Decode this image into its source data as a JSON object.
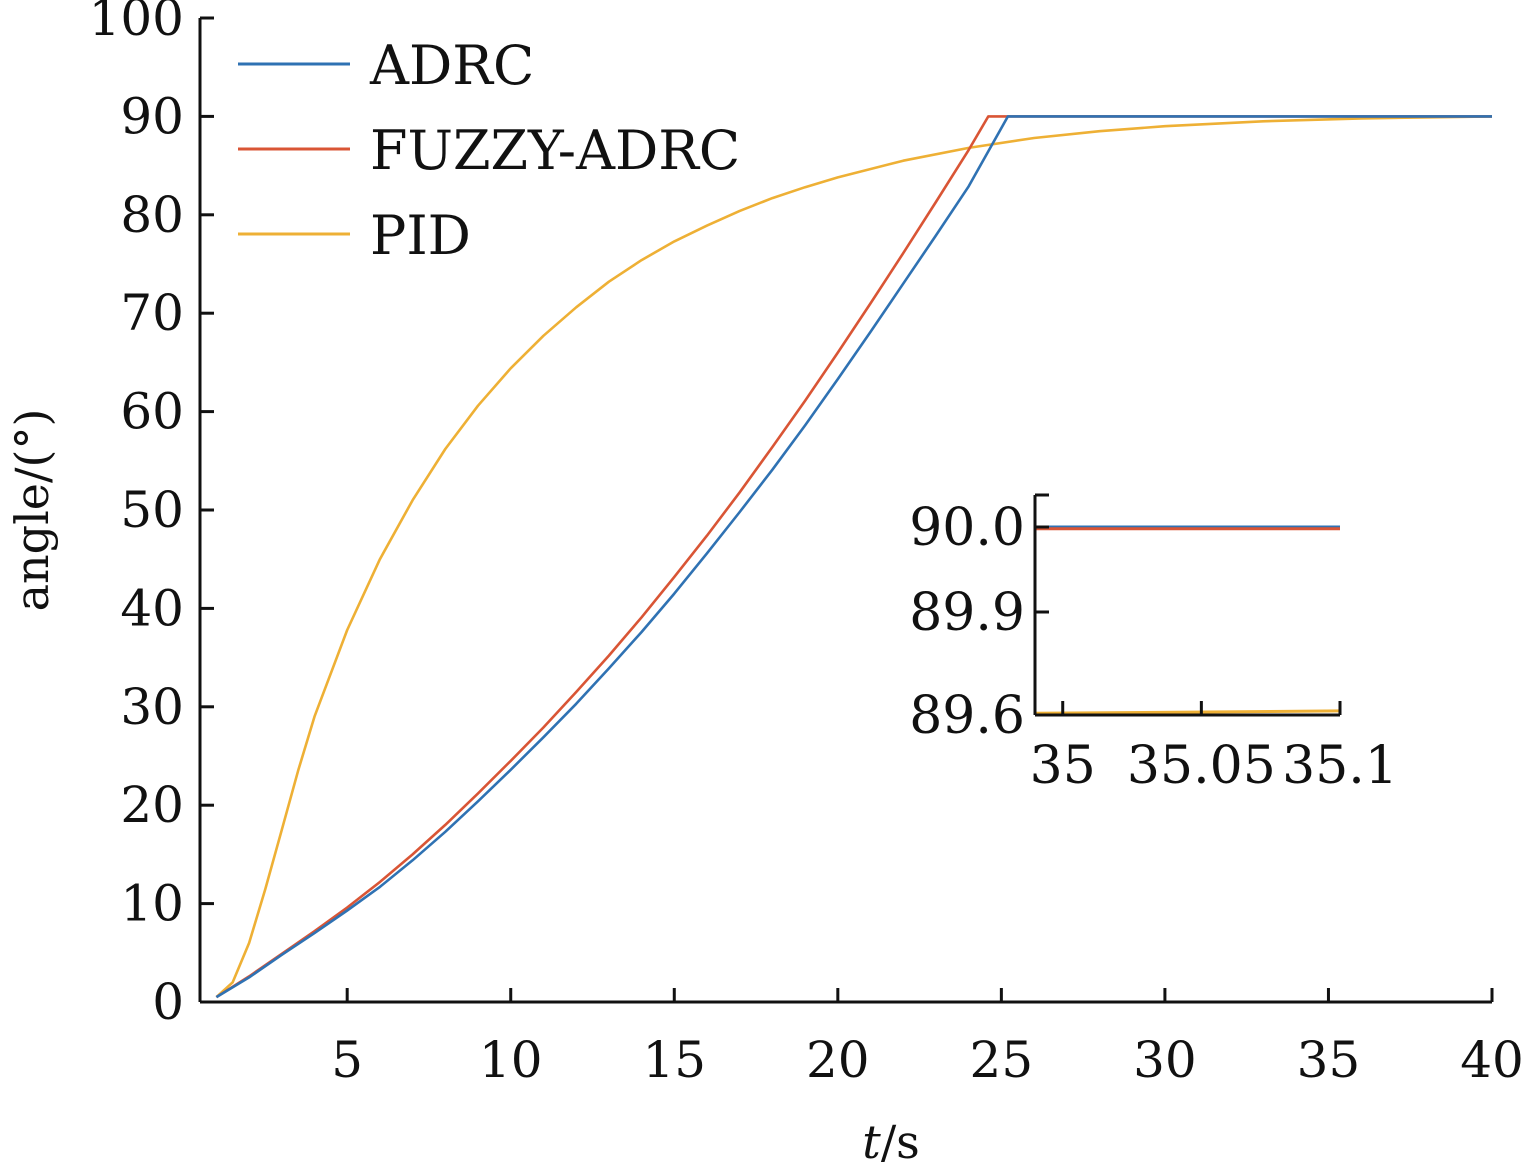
{
  "chart_data": [
    {
      "type": "line",
      "xlabel": "t/s",
      "xlabel_italic": "t",
      "xlabel_unit": "/s",
      "ylabel": "angle/(°)",
      "xlim": [
        0.5,
        40
      ],
      "ylim": [
        0,
        100
      ],
      "xticks": [
        5,
        10,
        15,
        20,
        25,
        30,
        35,
        40
      ],
      "yticks": [
        0,
        10,
        20,
        30,
        40,
        50,
        60,
        70,
        80,
        90,
        100
      ],
      "grid": false,
      "legend_position": "top-left",
      "series": [
        {
          "name": "ADRC",
          "color": "#2f72b3",
          "x": [
            1,
            2,
            3,
            4,
            5,
            6,
            7,
            8,
            9,
            10,
            11,
            12,
            13,
            14,
            15,
            16,
            17,
            18,
            19,
            20,
            21,
            22,
            23,
            24,
            25.2,
            27,
            30,
            35,
            40
          ],
          "y": [
            0.5,
            2.5,
            4.8,
            7.0,
            9.3,
            11.7,
            14.4,
            17.3,
            20.4,
            23.6,
            26.9,
            30.3,
            33.9,
            37.6,
            41.5,
            45.6,
            49.8,
            54.1,
            58.6,
            63.3,
            68.1,
            73.0,
            77.9,
            82.9,
            90.0,
            90.0,
            90.0,
            90.0,
            90.0
          ]
        },
        {
          "name": "FUZZY-ADRC",
          "color": "#d95535",
          "x": [
            1,
            2,
            3,
            4,
            5,
            6,
            7,
            8,
            9,
            10,
            11,
            12,
            13,
            14,
            15,
            16,
            17,
            18,
            19,
            20,
            21,
            22,
            23,
            24,
            24.6,
            27,
            30,
            35,
            40
          ],
          "y": [
            0.5,
            2.6,
            4.9,
            7.2,
            9.6,
            12.2,
            15.0,
            18.0,
            21.2,
            24.5,
            27.9,
            31.5,
            35.2,
            39.1,
            43.2,
            47.4,
            51.8,
            56.4,
            61.1,
            66.0,
            71.0,
            76.1,
            81.3,
            86.6,
            90.0,
            90.0,
            90.0,
            90.0,
            90.0
          ]
        },
        {
          "name": "PID",
          "color": "#eeb035",
          "x": [
            1,
            1.5,
            2,
            2.5,
            3,
            3.5,
            4,
            5,
            6,
            7,
            8,
            9,
            10,
            11,
            12,
            13,
            14,
            15,
            16,
            17,
            18,
            19,
            20,
            22,
            24,
            26,
            28,
            30,
            33,
            36,
            40
          ],
          "y": [
            0.5,
            2.0,
            6.0,
            11.5,
            17.5,
            23.5,
            29.0,
            37.8,
            45.0,
            51.0,
            56.2,
            60.6,
            64.4,
            67.7,
            70.6,
            73.2,
            75.4,
            77.3,
            78.9,
            80.4,
            81.7,
            82.8,
            83.8,
            85.5,
            86.8,
            87.8,
            88.5,
            89.0,
            89.5,
            89.8,
            90.0
          ]
        }
      ]
    },
    {
      "type": "line",
      "inset": true,
      "xlim": [
        34.99,
        35.1
      ],
      "ylim": [
        89.6,
        90.0
      ],
      "xticks": [
        35,
        35.05,
        35.1
      ],
      "xtick_labels": [
        "35",
        "35.05",
        "35.1"
      ],
      "yticks": [
        89.6,
        89.9,
        90.0
      ],
      "ytick_labels": [
        "89.6",
        "89.9",
        "90.0"
      ],
      "series": [
        {
          "name": "ADRC",
          "color": "#2f72b3",
          "x": [
            34.99,
            35.1
          ],
          "y": [
            90.0,
            90.0
          ]
        },
        {
          "name": "FUZZY-ADRC",
          "color": "#d95535",
          "x": [
            34.99,
            35.1
          ],
          "y": [
            89.998,
            89.998
          ]
        },
        {
          "name": "PID",
          "color": "#eeb035",
          "x": [
            34.99,
            35.1
          ],
          "y": [
            89.605,
            89.612
          ]
        }
      ]
    }
  ]
}
